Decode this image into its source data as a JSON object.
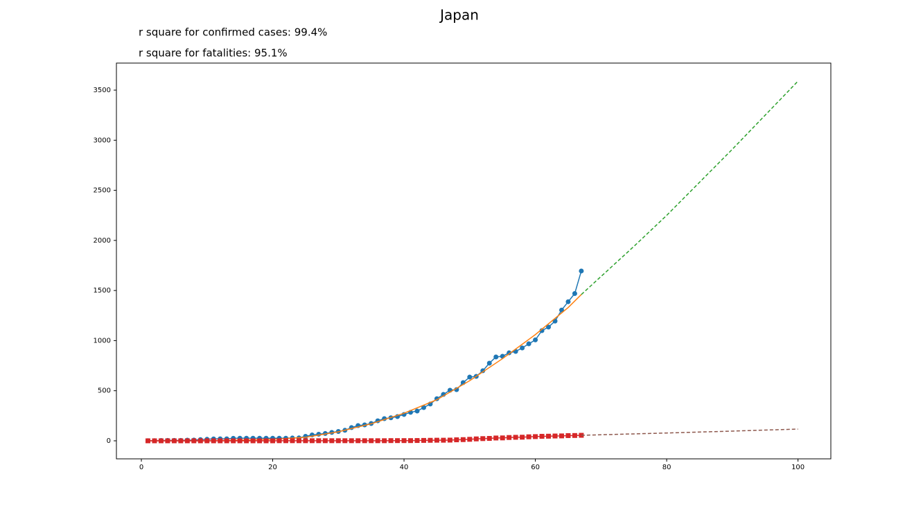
{
  "chart_data": {
    "type": "line",
    "title": "Japan",
    "annotations": [
      "r square for confirmed cases: 99.4%",
      "r square for fatalities: 95.1%"
    ],
    "xlim": [
      -3.8,
      105
    ],
    "ylim": [
      -180,
      3770
    ],
    "xticks": [
      0,
      20,
      40,
      60,
      80,
      100
    ],
    "yticks": [
      0,
      500,
      1000,
      1500,
      2000,
      2500,
      3000,
      3500
    ],
    "grid": false,
    "series": [
      {
        "color": "#1f77b4",
        "marker": "circle",
        "dashed": false,
        "x": [
          1,
          2,
          3,
          4,
          5,
          6,
          7,
          8,
          9,
          10,
          11,
          12,
          13,
          14,
          15,
          16,
          17,
          18,
          19,
          20,
          21,
          22,
          23,
          24,
          25,
          26,
          27,
          28,
          29,
          30,
          31,
          32,
          33,
          34,
          35,
          36,
          37,
          38,
          39,
          40,
          41,
          42,
          43,
          44,
          45,
          46,
          47,
          48,
          49,
          50,
          51,
          52,
          53,
          54,
          55,
          56,
          57,
          58,
          59,
          60,
          61,
          62,
          63,
          64,
          65,
          66,
          67
        ],
        "values": [
          2,
          2,
          3,
          4,
          4,
          4,
          7,
          8,
          12,
          15,
          19,
          20,
          20,
          25,
          26,
          26,
          26,
          26,
          26,
          26,
          26,
          26,
          28,
          29,
          45,
          59,
          66,
          73,
          84,
          93,
          105,
          132,
          152,
          159,
          173,
          200,
          221,
          230,
          242,
          263,
          284,
          297,
          332,
          367,
          420,
          463,
          505,
          511,
          581,
          636,
          643,
          699,
          775,
          837,
          844,
          878,
          892,
          927,
          968,
          1007,
          1100,
          1135,
          1195,
          1305,
          1388,
          1470,
          1695
        ]
      },
      {
        "color": "#ff7f0e",
        "marker": null,
        "dashed": false,
        "x": [
          1,
          10,
          20,
          25,
          30,
          35,
          40,
          45,
          50,
          55,
          60,
          65,
          67
        ],
        "values": [
          0,
          0,
          15,
          35,
          90,
          170,
          275,
          410,
          600,
          820,
          1060,
          1330,
          1460
        ]
      },
      {
        "color": "#2ca02c",
        "marker": null,
        "dashed": true,
        "x": [
          67,
          70,
          75,
          80,
          85,
          90,
          95,
          100
        ],
        "values": [
          1460,
          1640,
          1940,
          2250,
          2580,
          2910,
          3250,
          3590
        ]
      },
      {
        "color": "#d62728",
        "marker": "square",
        "dashed": false,
        "x": [
          1,
          2,
          3,
          4,
          5,
          6,
          7,
          8,
          9,
          10,
          11,
          12,
          13,
          14,
          15,
          16,
          17,
          18,
          19,
          20,
          21,
          22,
          23,
          24,
          25,
          26,
          27,
          28,
          29,
          30,
          31,
          32,
          33,
          34,
          35,
          36,
          37,
          38,
          39,
          40,
          41,
          42,
          43,
          44,
          45,
          46,
          47,
          48,
          49,
          50,
          51,
          52,
          53,
          54,
          55,
          56,
          57,
          58,
          59,
          60,
          61,
          62,
          63,
          64,
          65,
          66,
          67
        ],
        "values": [
          0,
          0,
          0,
          0,
          0,
          0,
          0,
          0,
          0,
          0,
          0,
          0,
          0,
          0,
          0,
          0,
          0,
          0,
          0,
          0,
          1,
          1,
          1,
          1,
          1,
          1,
          1,
          1,
          1,
          1,
          1,
          1,
          1,
          1,
          1,
          1,
          1,
          2,
          2,
          2,
          2,
          3,
          4,
          5,
          6,
          6,
          7,
          10,
          12,
          15,
          19,
          22,
          24,
          28,
          29,
          33,
          35,
          36,
          40,
          42,
          45,
          46,
          48,
          49,
          52,
          53,
          55
        ]
      },
      {
        "color": "#8c564b",
        "marker": null,
        "dashed": true,
        "x": [
          67,
          80,
          90,
          100
        ],
        "values": [
          55,
          78,
          97,
          117
        ]
      }
    ]
  }
}
